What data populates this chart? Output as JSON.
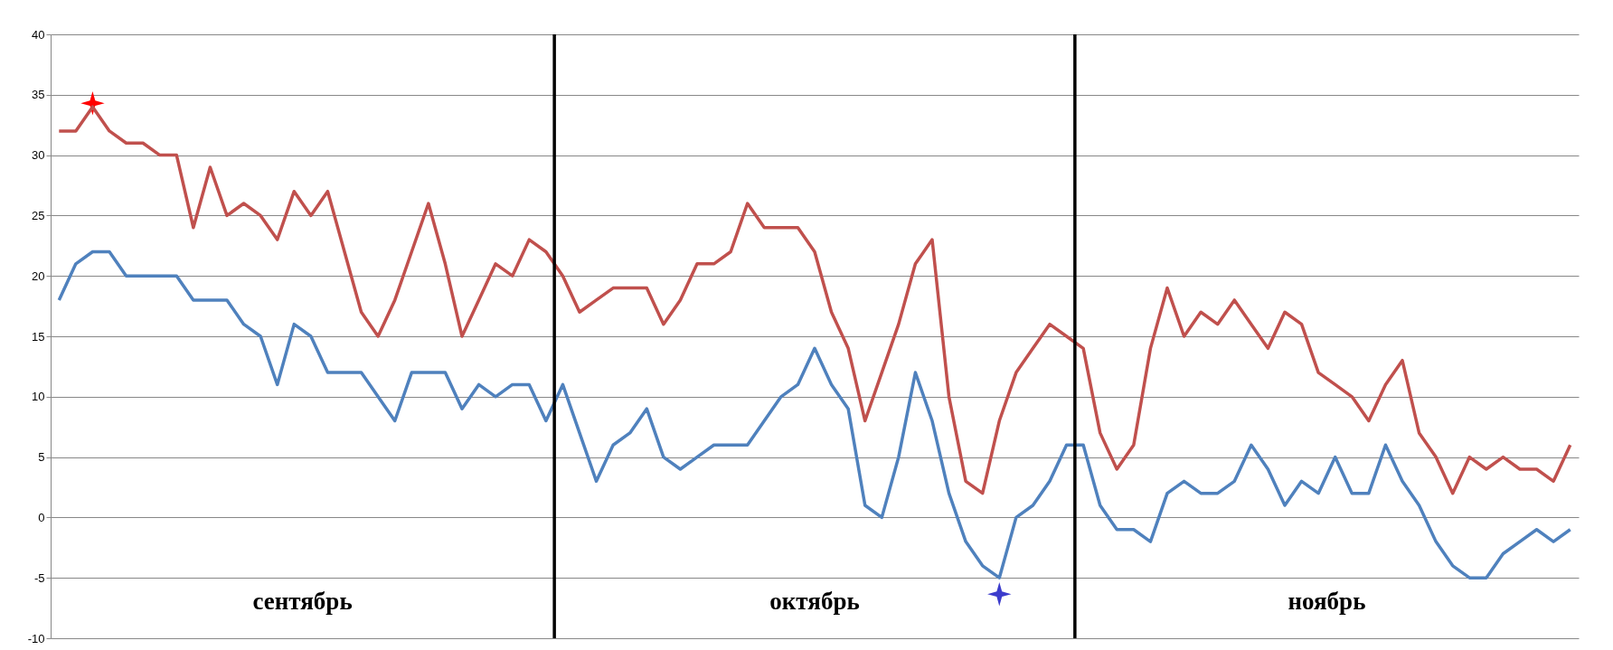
{
  "chart_data": {
    "type": "line",
    "categories": [
      null,
      null,
      null,
      null,
      null,
      null,
      null,
      null,
      null,
      null,
      null,
      null,
      null,
      null,
      null,
      null,
      null,
      null,
      null,
      null,
      null,
      null,
      null,
      null,
      null,
      null,
      null,
      null,
      null,
      null,
      null,
      null,
      null,
      null,
      null,
      null,
      null,
      null,
      null,
      null,
      null,
      null,
      null,
      null,
      null,
      null,
      null,
      null,
      null,
      null,
      null,
      null,
      null,
      null,
      null,
      null,
      null,
      null,
      null,
      null,
      null,
      null,
      null,
      null,
      null,
      null,
      null,
      null,
      null,
      null,
      null,
      null,
      null,
      null,
      null,
      null,
      null,
      null,
      null,
      null,
      null,
      null,
      null,
      null,
      null,
      null,
      null,
      null,
      null,
      null,
      null
    ],
    "series": [
      {
        "color": "#c0504d",
        "values": [
          32,
          32,
          34,
          32,
          31,
          31,
          30,
          30,
          24,
          29,
          25,
          26,
          25,
          23,
          27,
          25,
          27,
          22,
          17,
          15,
          18,
          22,
          26,
          21,
          15,
          18,
          21,
          20,
          23,
          22,
          20,
          17,
          18,
          19,
          19,
          19,
          16,
          18,
          21,
          21,
          22,
          26,
          24,
          24,
          24,
          22,
          17,
          14,
          8,
          12,
          16,
          21,
          23,
          10,
          3,
          2,
          8,
          12,
          14,
          16,
          15,
          14,
          7,
          4,
          6,
          14,
          19,
          15,
          17,
          16,
          18,
          16,
          14,
          17,
          16,
          12,
          11,
          10,
          8,
          11,
          13,
          7,
          5,
          2,
          5,
          4,
          5,
          4,
          4,
          3,
          6
        ]
      },
      {
        "color": "#4f81bd",
        "values": [
          18,
          21,
          22,
          22,
          20,
          20,
          20,
          20,
          18,
          18,
          18,
          16,
          15,
          11,
          16,
          15,
          12,
          12,
          12,
          10,
          8,
          12,
          12,
          12,
          9,
          11,
          10,
          11,
          11,
          8,
          11,
          7,
          3,
          6,
          7,
          9,
          5,
          4,
          5,
          6,
          6,
          6,
          8,
          10,
          11,
          14,
          11,
          9,
          1,
          0,
          5,
          12,
          8,
          2,
          -2,
          -4,
          -5,
          0,
          1,
          3,
          6,
          6,
          1,
          -1,
          -1,
          -2,
          2,
          3,
          2,
          2,
          3,
          6,
          4,
          1,
          3,
          2,
          5,
          2,
          2,
          6,
          3,
          1,
          -2,
          -4,
          -5,
          -5,
          -3,
          -2,
          -1,
          -2,
          -1
        ]
      }
    ],
    "ylim": [
      -10,
      40
    ],
    "yticks": [
      -10,
      -5,
      0,
      5,
      10,
      15,
      20,
      25,
      30,
      35,
      40
    ],
    "tick_labels": "y",
    "grid": "y",
    "annotations": [
      "сентябрь",
      "октябрь",
      "ноябрь"
    ]
  }
}
